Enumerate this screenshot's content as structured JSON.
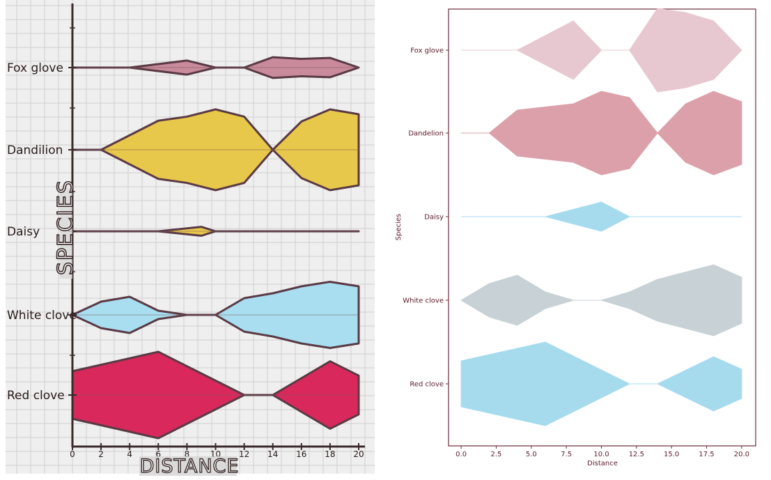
{
  "panels": [
    {
      "kind": "hand-drawn",
      "ylabel": "SPECIES",
      "xlabel": "DISTANCE",
      "categories": [
        "Fox glove",
        "Dandilion",
        "Daisy",
        "White clove",
        "Red clove"
      ],
      "xticks": [
        "0",
        "2",
        "4",
        "6",
        "8",
        "10",
        "12",
        "14",
        "16",
        "18",
        "20"
      ],
      "background": "#efefef",
      "grid_color": "#cfcfcf"
    },
    {
      "kind": "matplotlib",
      "ylabel": "Species",
      "xlabel": "Distance",
      "categories": [
        "Fox glove",
        "Dandelion",
        "Daisy",
        "White clove",
        "Red clove"
      ],
      "xticks": [
        "0.0",
        "2.5",
        "5.0",
        "7.5",
        "10.0",
        "12.5",
        "15.0",
        "17.5",
        "20.0"
      ],
      "frame_color": "#6b2a3a"
    }
  ],
  "chart_data": [
    {
      "type": "violin",
      "xlim": [
        0,
        20
      ],
      "xlabel": "DISTANCE",
      "ylabel": "SPECIES",
      "grid": true,
      "series": [
        {
          "name": "Fox glove",
          "color": "#c98a9c",
          "x": [
            0,
            2,
            4,
            8,
            10,
            11,
            12,
            14,
            16,
            18,
            20
          ],
          "halfwidth": [
            0,
            0,
            0,
            0.42,
            0,
            0,
            0,
            0.62,
            0.52,
            0.58,
            0
          ]
        },
        {
          "name": "Dandilion",
          "color": "#e8c84a",
          "x": [
            0,
            2,
            6,
            8,
            10,
            12,
            14,
            16,
            18,
            20
          ],
          "halfwidth": [
            0,
            0,
            0.72,
            0.82,
            1.0,
            0.82,
            0,
            0.7,
            1.0,
            0.88
          ]
        },
        {
          "name": "Daisy",
          "color": "#e8c84a",
          "x": [
            0,
            6,
            9,
            10,
            20
          ],
          "halfwidth": [
            0,
            0,
            0.32,
            0,
            0
          ]
        },
        {
          "name": "White clove",
          "color": "#a8def0",
          "x": [
            0,
            2,
            4,
            6,
            8,
            9,
            10,
            12,
            14,
            16,
            18,
            20
          ],
          "halfwidth": [
            0,
            0.38,
            0.52,
            0.12,
            0,
            0,
            0,
            0.48,
            0.62,
            0.82,
            0.95,
            0.82
          ]
        },
        {
          "name": "Red clove",
          "color": "#d9285c",
          "x": [
            0,
            6,
            12,
            13,
            14,
            18,
            20
          ],
          "halfwidth": [
            0.55,
            1.0,
            0,
            0,
            0,
            0.78,
            0.45
          ]
        }
      ]
    },
    {
      "type": "violin",
      "xlim": [
        -0.9,
        21
      ],
      "xlabel": "Distance",
      "ylabel": "Species",
      "grid": false,
      "series": [
        {
          "name": "Fox glove",
          "color": "#e7c8d0",
          "x": [
            0,
            4,
            8,
            10,
            12,
            14,
            16,
            18,
            20
          ],
          "halfwidth": [
            0,
            0,
            0.7,
            0,
            0,
            1.0,
            0.9,
            0.7,
            0
          ]
        },
        {
          "name": "Dandelion",
          "color": "#dca0aa",
          "x": [
            0,
            2,
            4,
            8,
            10,
            12,
            14,
            16,
            18,
            20
          ],
          "halfwidth": [
            0,
            0,
            0.55,
            0.7,
            1.0,
            0.85,
            0,
            0.7,
            1.0,
            0.75
          ]
        },
        {
          "name": "Daisy",
          "color": "#a6dbee",
          "x": [
            0,
            6,
            10,
            12,
            20
          ],
          "halfwidth": [
            0,
            0,
            0.35,
            0,
            0
          ]
        },
        {
          "name": "White clove",
          "color": "#c7d1d6",
          "x": [
            0,
            2,
            4,
            6,
            8,
            10,
            12,
            14,
            18,
            20
          ],
          "halfwidth": [
            0,
            0.4,
            0.6,
            0.2,
            0,
            0,
            0.2,
            0.5,
            0.85,
            0.55
          ]
        },
        {
          "name": "Red clove",
          "color": "#a6dbee",
          "x": [
            0,
            6,
            12,
            14,
            18,
            20
          ],
          "halfwidth": [
            0.55,
            1.0,
            0,
            0,
            0.65,
            0.35
          ]
        }
      ]
    }
  ]
}
